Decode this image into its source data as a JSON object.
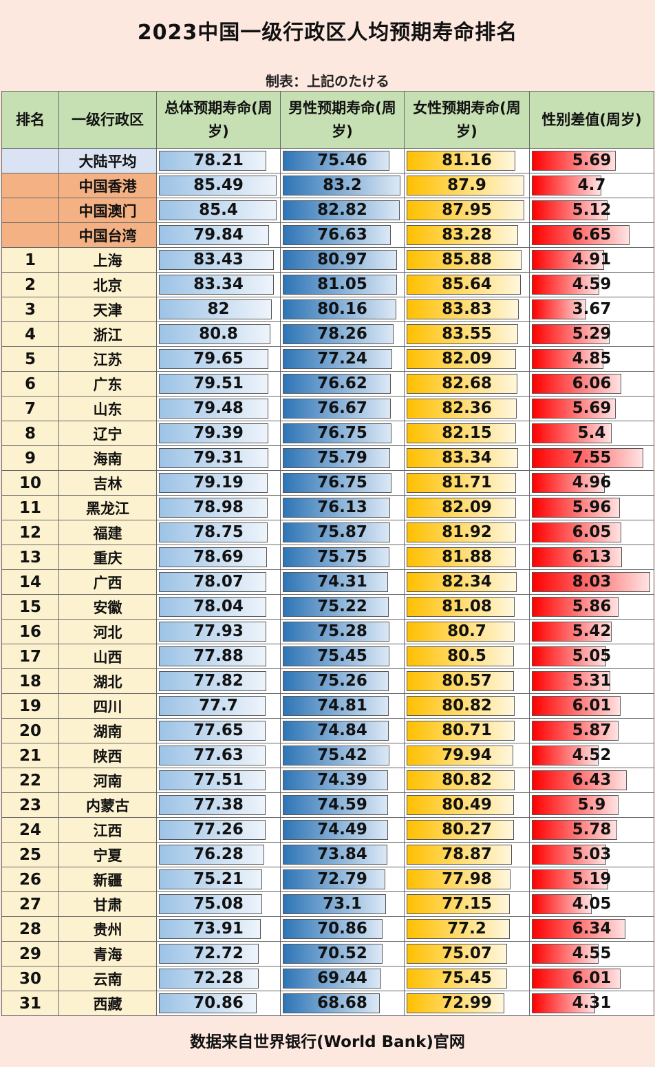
{
  "title": "2023中国一级行政区人均预期寿命排名",
  "credit": "制表：上記のたける",
  "source": "数据来自世界银行(World Bank)官网",
  "headers": {
    "rank": "排名",
    "region": "一级行政区",
    "total": "总体预期寿命(周岁)",
    "male": "男性预期寿命(周岁)",
    "female": "女性预期寿命(周岁)",
    "diff": "性别差值(周岁)"
  },
  "colors": {
    "header_bg": "#c6e0b4",
    "total_bar": "#9dc3e6",
    "male_bar": "#2e75b6",
    "female_bar": "#ffc000",
    "diff_bar": "#ff0000"
  },
  "chart_data": {
    "type": "table",
    "columns": [
      "排名",
      "一级行政区",
      "总体预期寿命(周岁)",
      "男性预期寿命(周岁)",
      "女性预期寿命(周岁)",
      "性别差值(周岁)"
    ],
    "rows": [
      {
        "rank": "",
        "name": "大陆平均",
        "total": 78.21,
        "male": 75.46,
        "female": 81.16,
        "diff": 5.69,
        "group": "avg"
      },
      {
        "rank": "",
        "name": "中国香港",
        "total": 85.49,
        "male": 83.2,
        "female": 87.9,
        "diff": 4.7,
        "group": "special"
      },
      {
        "rank": "",
        "name": "中国澳门",
        "total": 85.4,
        "male": 82.82,
        "female": 87.95,
        "diff": 5.12,
        "group": "special"
      },
      {
        "rank": "",
        "name": "中国台湾",
        "total": 79.84,
        "male": 76.63,
        "female": 83.28,
        "diff": 6.65,
        "group": "special"
      },
      {
        "rank": "1",
        "name": "上海",
        "total": 83.43,
        "male": 80.97,
        "female": 85.88,
        "diff": 4.91,
        "group": "ranked"
      },
      {
        "rank": "2",
        "name": "北京",
        "total": 83.34,
        "male": 81.05,
        "female": 85.64,
        "diff": 4.59,
        "group": "ranked"
      },
      {
        "rank": "3",
        "name": "天津",
        "total": 82,
        "male": 80.16,
        "female": 83.83,
        "diff": 3.67,
        "group": "ranked"
      },
      {
        "rank": "4",
        "name": "浙江",
        "total": 80.8,
        "male": 78.26,
        "female": 83.55,
        "diff": 5.29,
        "group": "ranked"
      },
      {
        "rank": "5",
        "name": "江苏",
        "total": 79.65,
        "male": 77.24,
        "female": 82.09,
        "diff": 4.85,
        "group": "ranked"
      },
      {
        "rank": "6",
        "name": "广东",
        "total": 79.51,
        "male": 76.62,
        "female": 82.68,
        "diff": 6.06,
        "group": "ranked"
      },
      {
        "rank": "7",
        "name": "山东",
        "total": 79.48,
        "male": 76.67,
        "female": 82.36,
        "diff": 5.69,
        "group": "ranked"
      },
      {
        "rank": "8",
        "name": "辽宁",
        "total": 79.39,
        "male": 76.75,
        "female": 82.15,
        "diff": 5.4,
        "group": "ranked"
      },
      {
        "rank": "9",
        "name": "海南",
        "total": 79.31,
        "male": 75.79,
        "female": 83.34,
        "diff": 7.55,
        "group": "ranked"
      },
      {
        "rank": "10",
        "name": "吉林",
        "total": 79.19,
        "male": 76.75,
        "female": 81.71,
        "diff": 4.96,
        "group": "ranked"
      },
      {
        "rank": "11",
        "name": "黑龙江",
        "total": 78.98,
        "male": 76.13,
        "female": 82.09,
        "diff": 5.96,
        "group": "ranked"
      },
      {
        "rank": "12",
        "name": "福建",
        "total": 78.75,
        "male": 75.87,
        "female": 81.92,
        "diff": 6.05,
        "group": "ranked"
      },
      {
        "rank": "13",
        "name": "重庆",
        "total": 78.69,
        "male": 75.75,
        "female": 81.88,
        "diff": 6.13,
        "group": "ranked"
      },
      {
        "rank": "14",
        "name": "广西",
        "total": 78.07,
        "male": 74.31,
        "female": 82.34,
        "diff": 8.03,
        "group": "ranked"
      },
      {
        "rank": "15",
        "name": "安徽",
        "total": 78.04,
        "male": 75.22,
        "female": 81.08,
        "diff": 5.86,
        "group": "ranked"
      },
      {
        "rank": "16",
        "name": "河北",
        "total": 77.93,
        "male": 75.28,
        "female": 80.7,
        "diff": 5.42,
        "group": "ranked"
      },
      {
        "rank": "17",
        "name": "山西",
        "total": 77.88,
        "male": 75.45,
        "female": 80.5,
        "diff": 5.05,
        "group": "ranked"
      },
      {
        "rank": "18",
        "name": "湖北",
        "total": 77.82,
        "male": 75.26,
        "female": 80.57,
        "diff": 5.31,
        "group": "ranked"
      },
      {
        "rank": "19",
        "name": "四川",
        "total": 77.7,
        "male": 74.81,
        "female": 80.82,
        "diff": 6.01,
        "group": "ranked"
      },
      {
        "rank": "20",
        "name": "湖南",
        "total": 77.65,
        "male": 74.84,
        "female": 80.71,
        "diff": 5.87,
        "group": "ranked"
      },
      {
        "rank": "21",
        "name": "陕西",
        "total": 77.63,
        "male": 75.42,
        "female": 79.94,
        "diff": 4.52,
        "group": "ranked"
      },
      {
        "rank": "22",
        "name": "河南",
        "total": 77.51,
        "male": 74.39,
        "female": 80.82,
        "diff": 6.43,
        "group": "ranked"
      },
      {
        "rank": "23",
        "name": "内蒙古",
        "total": 77.38,
        "male": 74.59,
        "female": 80.49,
        "diff": 5.9,
        "group": "ranked"
      },
      {
        "rank": "24",
        "name": "江西",
        "total": 77.26,
        "male": 74.49,
        "female": 80.27,
        "diff": 5.78,
        "group": "ranked"
      },
      {
        "rank": "25",
        "name": "宁夏",
        "total": 76.28,
        "male": 73.84,
        "female": 78.87,
        "diff": 5.03,
        "group": "ranked"
      },
      {
        "rank": "26",
        "name": "新疆",
        "total": 75.21,
        "male": 72.79,
        "female": 77.98,
        "diff": 5.19,
        "group": "ranked"
      },
      {
        "rank": "27",
        "name": "甘肃",
        "total": 75.08,
        "male": 73.1,
        "female": 77.15,
        "diff": 4.05,
        "group": "ranked"
      },
      {
        "rank": "28",
        "name": "贵州",
        "total": 73.91,
        "male": 70.86,
        "female": 77.2,
        "diff": 6.34,
        "group": "ranked"
      },
      {
        "rank": "29",
        "name": "青海",
        "total": 72.72,
        "male": 70.52,
        "female": 75.07,
        "diff": 4.55,
        "group": "ranked"
      },
      {
        "rank": "30",
        "name": "云南",
        "total": 72.28,
        "male": 69.44,
        "female": 75.45,
        "diff": 6.01,
        "group": "ranked"
      },
      {
        "rank": "31",
        "name": "西藏",
        "total": 70.86,
        "male": 68.68,
        "female": 72.99,
        "diff": 4.31,
        "group": "ranked"
      }
    ]
  }
}
